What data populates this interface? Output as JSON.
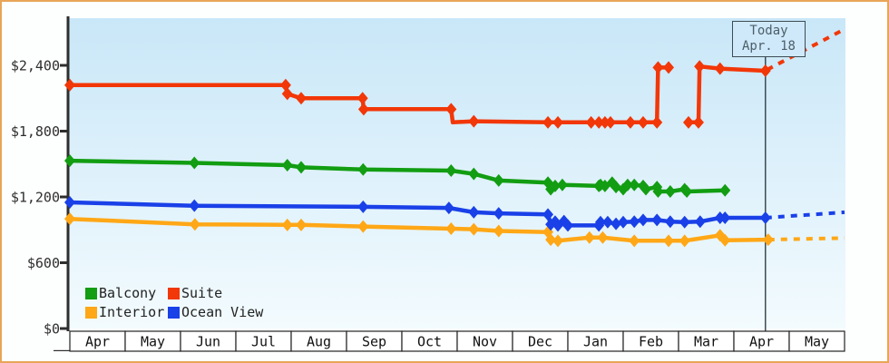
{
  "window": {
    "border_color": "#e8a558",
    "background_color": "#fdfefe"
  },
  "today_box": {
    "line1": "Today",
    "line2": "Apr. 18"
  },
  "chart_data": {
    "type": "line",
    "title": "",
    "xlabel": "",
    "ylabel": "",
    "legend_position": "bottom-left-inside",
    "grid": false,
    "plot_background": {
      "top": "#c9e7f8",
      "bottom": "#f3fbfe"
    },
    "axis_color": "#2e2e2e",
    "today_line_color": "#3c4c55",
    "y_axis": {
      "tick_labels": [
        "$0",
        "$600",
        "$1,200",
        "$1,800",
        "$2,400"
      ],
      "tick_values": [
        0,
        600,
        1200,
        1800,
        2400
      ],
      "range": [
        0,
        2830
      ]
    },
    "x_axis": {
      "months": [
        "Apr",
        "May",
        "Jun",
        "Jul",
        "Aug",
        "Sep",
        "Oct",
        "Nov",
        "Dec",
        "Jan",
        "Feb",
        "Mar",
        "Apr",
        "May"
      ]
    },
    "today": {
      "label1": "Today",
      "label2": "Apr. 18",
      "month_position": 12.57
    },
    "series": [
      {
        "name": "Balcony",
        "color": "#129d12",
        "segments": [
          [
            [
              0,
              1530
            ],
            [
              2.25,
              1510
            ],
            [
              3.93,
              1490
            ],
            [
              4.18,
              1470
            ],
            [
              5.3,
              1450
            ],
            [
              6.89,
              1440
            ],
            [
              7.3,
              1410
            ],
            [
              7.75,
              1350
            ],
            [
              8.64,
              1330
            ],
            [
              8.69,
              1270
            ],
            [
              8.77,
              1300
            ],
            [
              8.9,
              1310
            ],
            [
              9.56,
              1300
            ],
            [
              9.59,
              1310
            ],
            [
              9.67,
              1300
            ],
            [
              9.8,
              1330
            ],
            [
              9.87,
              1290
            ],
            [
              10,
              1270
            ],
            [
              10.08,
              1310
            ],
            [
              10.2,
              1310
            ],
            [
              10.36,
              1300
            ],
            [
              10.41,
              1270
            ],
            [
              10.61,
              1290
            ],
            [
              10.63,
              1250
            ],
            [
              10.85,
              1250
            ],
            [
              11.11,
              1270
            ],
            [
              11.15,
              1250
            ],
            [
              11.84,
              1260
            ]
          ]
        ],
        "projection": null
      },
      {
        "name": "Suite",
        "color": "#f23708",
        "segments": [
          [
            [
              0,
              2220
            ],
            [
              3.9,
              2220
            ],
            [
              3.93,
              2140
            ],
            [
              4.18,
              2100
            ],
            [
              5.29,
              2100
            ],
            [
              5.31,
              2000
            ],
            [
              6.89,
              2000
            ],
            [
              6.92,
              1880,
              0
            ],
            [
              7.3,
              1890
            ],
            [
              8.64,
              1880
            ],
            [
              8.82,
              1880
            ],
            [
              9.42,
              1880
            ],
            [
              9.56,
              1880
            ],
            [
              9.67,
              1880
            ],
            [
              9.77,
              1880
            ],
            [
              10.13,
              1880
            ],
            [
              10.36,
              1880
            ],
            [
              10.61,
              1880
            ],
            [
              10.63,
              2380
            ],
            [
              10.82,
              2380
            ]
          ],
          [
            [
              11.18,
              1880
            ],
            [
              11.36,
              1880
            ],
            [
              11.38,
              2390
            ],
            [
              11.75,
              2370
            ],
            [
              12.57,
              2350
            ]
          ]
        ],
        "projection": [
          [
            12.6,
            2360
          ],
          [
            14,
            2730
          ]
        ]
      },
      {
        "name": "Interior",
        "color": "#ffa716",
        "segments": [
          [
            [
              0,
              1000
            ],
            [
              2.26,
              950
            ],
            [
              3.93,
              945
            ],
            [
              4.18,
              945
            ],
            [
              5.3,
              930
            ],
            [
              6.89,
              910
            ],
            [
              7.3,
              905
            ],
            [
              7.75,
              890
            ],
            [
              8.64,
              880
            ],
            [
              8.69,
              810
            ],
            [
              8.82,
              800
            ],
            [
              9.39,
              830
            ],
            [
              9.63,
              830
            ],
            [
              10.2,
              800
            ],
            [
              10.82,
              800
            ],
            [
              11.11,
              800
            ],
            [
              11.75,
              850
            ],
            [
              11.84,
              805
            ],
            [
              12.62,
              810
            ]
          ]
        ],
        "projection": [
          [
            12.62,
            810
          ],
          [
            14,
            825
          ]
        ]
      },
      {
        "name": "Ocean View",
        "color": "#1a40e8",
        "segments": [
          [
            [
              0,
              1150
            ],
            [
              2.25,
              1120
            ],
            [
              5.3,
              1110
            ],
            [
              6.85,
              1100
            ],
            [
              7.3,
              1060
            ],
            [
              7.75,
              1050
            ],
            [
              8.64,
              1040
            ],
            [
              8.69,
              950
            ],
            [
              8.77,
              975
            ],
            [
              8.82,
              940
            ],
            [
              8.93,
              980
            ],
            [
              9,
              940
            ],
            [
              9.56,
              940
            ],
            [
              9.59,
              970
            ],
            [
              9.72,
              970
            ],
            [
              9.87,
              955
            ],
            [
              10,
              970
            ],
            [
              10.2,
              975
            ],
            [
              10.36,
              990
            ],
            [
              10.61,
              990
            ],
            [
              10.85,
              975
            ],
            [
              11.11,
              970
            ],
            [
              11.39,
              975
            ],
            [
              11.75,
              1010
            ],
            [
              11.84,
              1010
            ],
            [
              12.57,
              1010
            ]
          ]
        ],
        "projection": [
          [
            12.57,
            1010
          ],
          [
            14,
            1060
          ]
        ]
      }
    ]
  }
}
